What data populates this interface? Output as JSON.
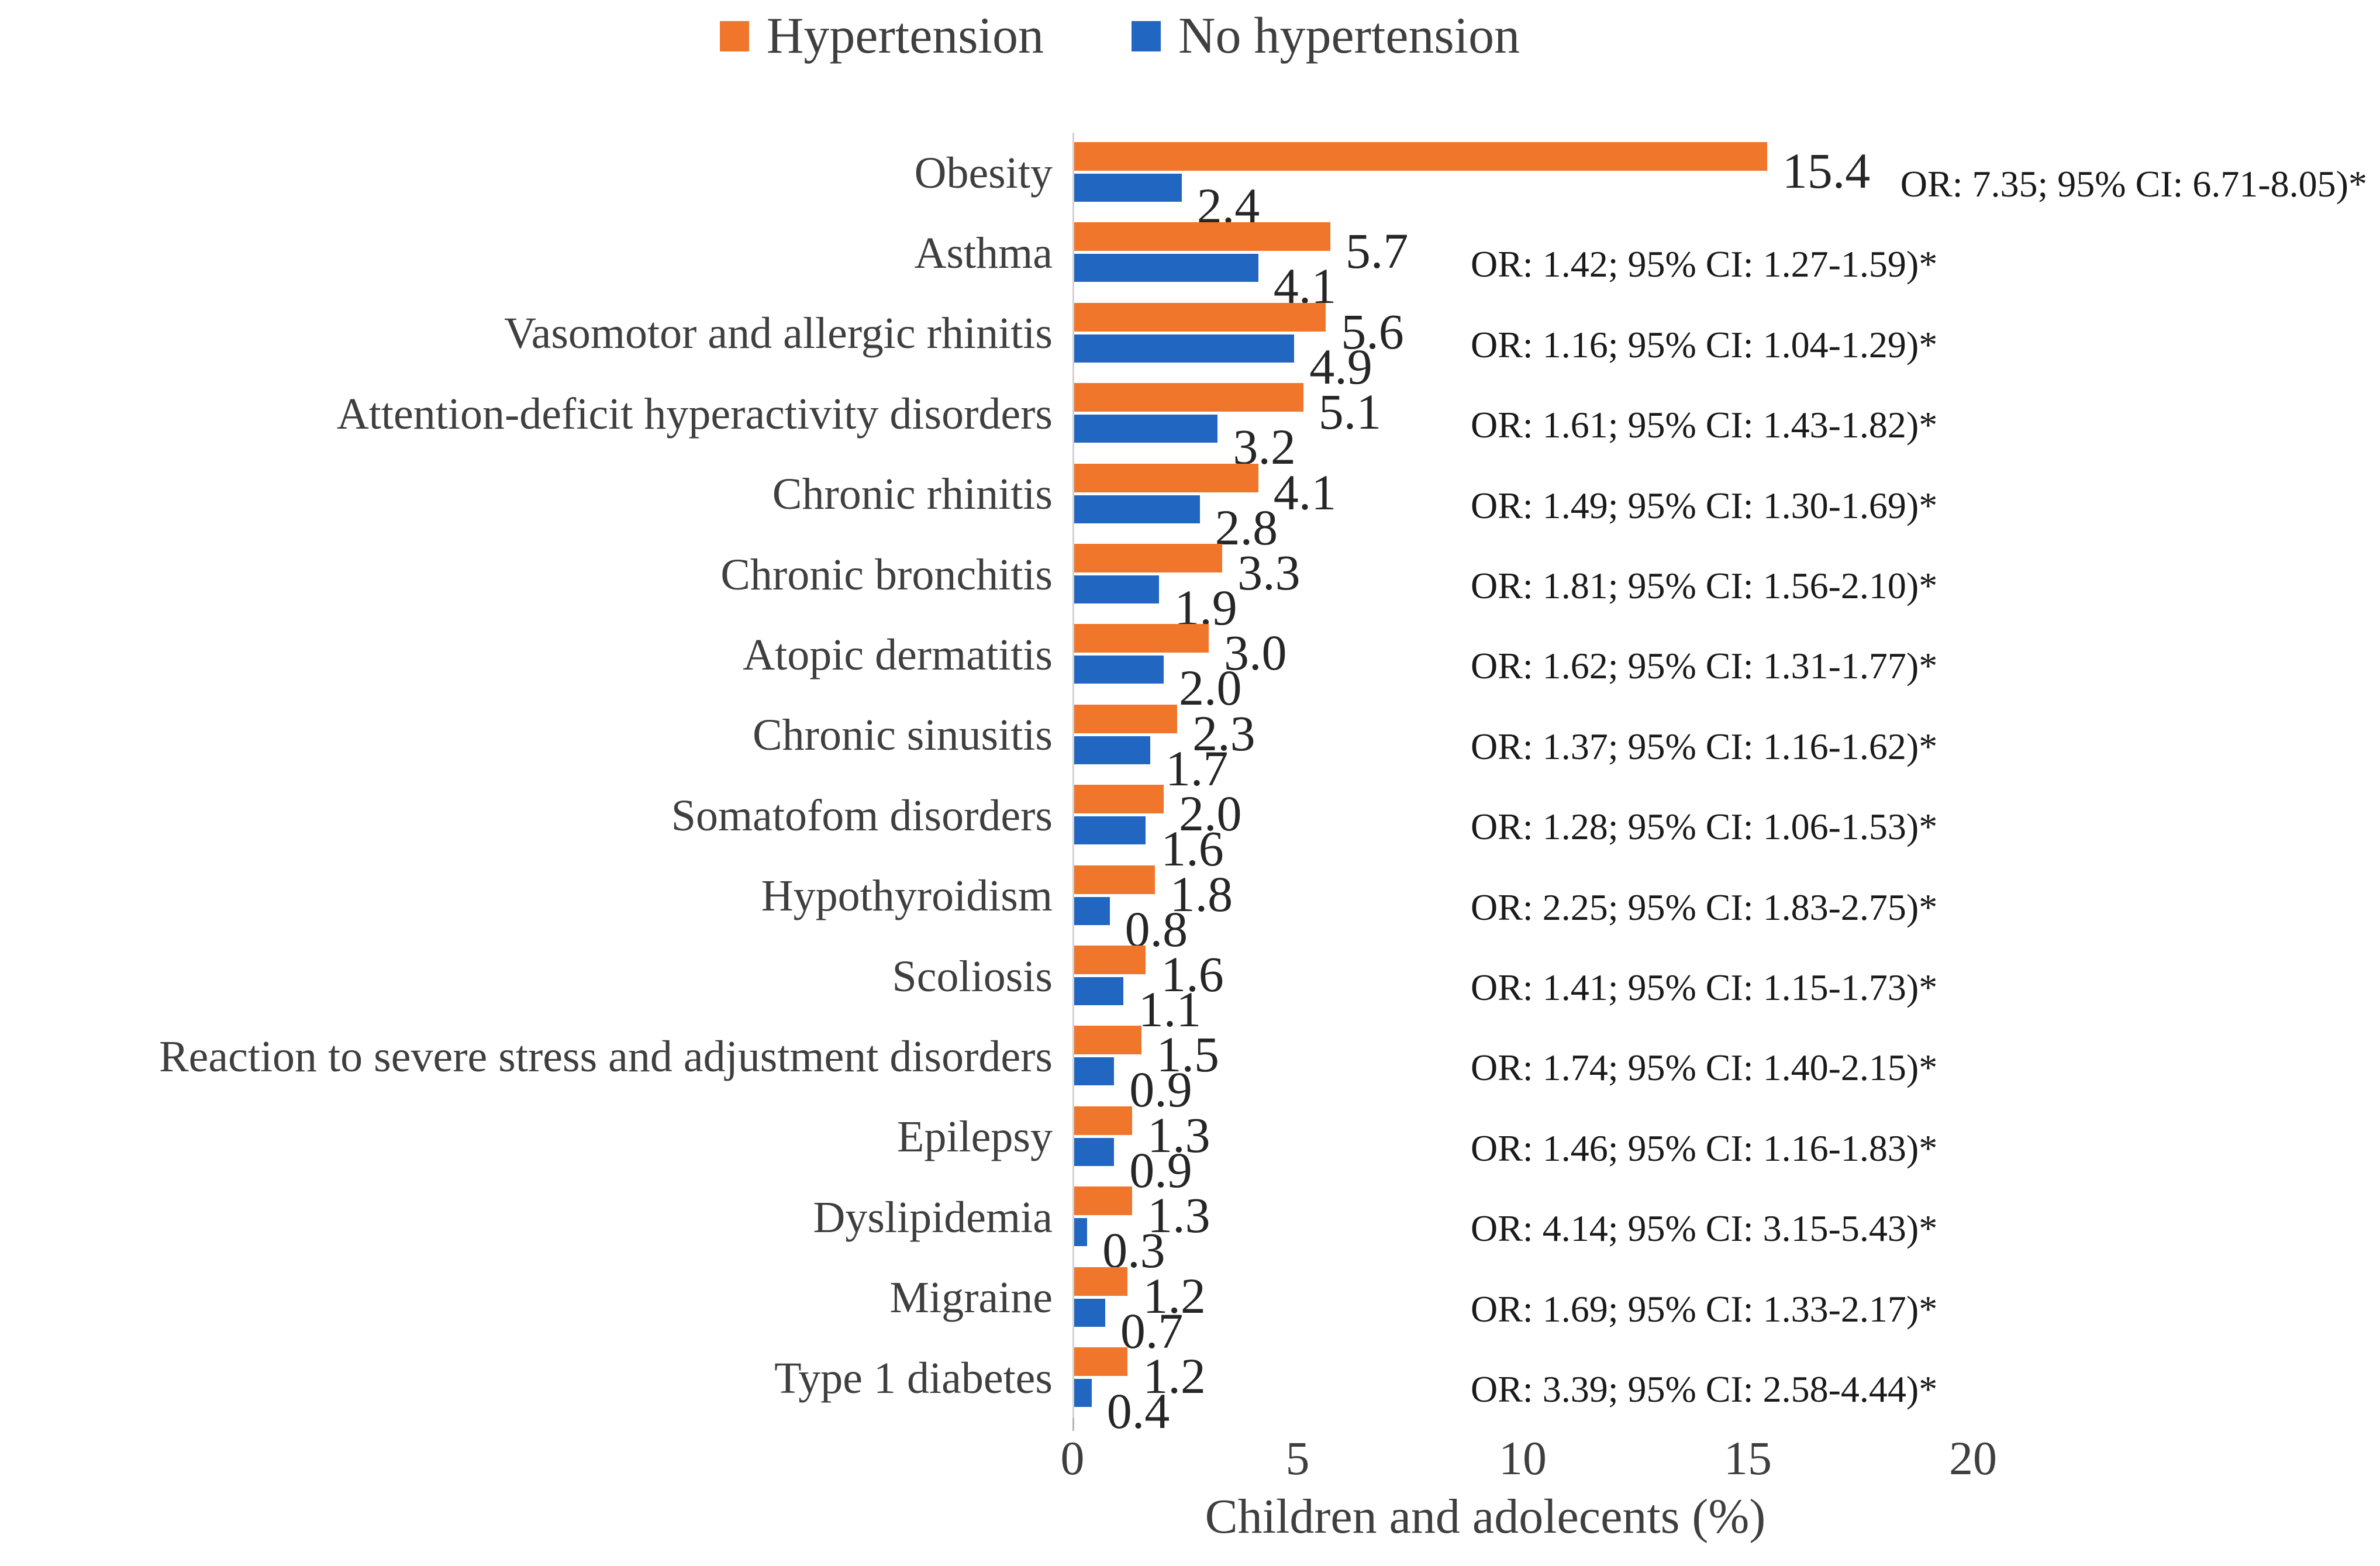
{
  "figure": {
    "background": "#ffffff"
  },
  "legend": {
    "items": [
      {
        "label": "Hypertension",
        "color": "#F0762B"
      },
      {
        "label": "No hypertension",
        "color": "#2166C0"
      }
    ]
  },
  "chart_data": {
    "type": "bar",
    "orientation": "horizontal",
    "title": "",
    "xlabel": "Children and adolecents (%)",
    "ylabel": "",
    "xlim": [
      0,
      20
    ],
    "xticks": [
      "0",
      "5",
      "10",
      "15",
      "20"
    ],
    "grid": false,
    "legend_position": "top-center",
    "categories": [
      "Obesity",
      "Asthma",
      "Vasomotor and allergic rhinitis",
      "Attention-deficit hyperactivity disorders",
      "Chronic rhinitis",
      "Chronic bronchitis",
      "Atopic dermatitis",
      "Chronic sinusitis",
      "Somatofom disorders",
      "Hypothyroidism",
      "Scoliosis",
      "Reaction to severe stress and adjustment disorders",
      "Epilepsy",
      "Dyslipidemia",
      "Migraine",
      "Type 1 diabetes"
    ],
    "series": [
      {
        "name": "Hypertension",
        "color": "#F0762B",
        "values": [
          15.4,
          5.7,
          5.6,
          5.1,
          4.1,
          3.3,
          3.0,
          2.3,
          2.0,
          1.8,
          1.6,
          1.5,
          1.3,
          1.3,
          1.2,
          1.2
        ],
        "value_labels": [
          "15.4",
          "5.7",
          "5.6",
          "5.1",
          "4.1",
          "3.3",
          "3.0",
          "2.3",
          "2.0",
          "1.8",
          "1.6",
          "1.5",
          "1.3",
          "1.3",
          "1.2",
          "1.2"
        ]
      },
      {
        "name": "No hypertension",
        "color": "#2166C0",
        "values": [
          2.4,
          4.1,
          4.9,
          3.2,
          2.8,
          1.9,
          2.0,
          1.7,
          1.6,
          0.8,
          1.1,
          0.9,
          0.9,
          0.3,
          0.7,
          0.4
        ],
        "value_labels": [
          "2.4",
          "4.1",
          "4.9",
          "3.2",
          "2.8",
          "1.9",
          "2.0",
          "1.7",
          "1.6",
          "0.8",
          "1.1",
          "0.9",
          "0.9",
          "0.3",
          "0.7",
          "0.4"
        ]
      }
    ],
    "annotations": [
      "OR: 7.35; 95% CI: 6.71-8.05)*",
      "OR: 1.42; 95% CI: 1.27-1.59)*",
      "OR: 1.16; 95% CI: 1.04-1.29)*",
      "OR: 1.61; 95% CI: 1.43-1.82)*",
      "OR: 1.49; 95% CI: 1.30-1.69)*",
      "OR: 1.81; 95% CI: 1.56-2.10)*",
      "OR: 1.62; 95% CI: 1.31-1.77)*",
      "OR: 1.37; 95% CI: 1.16-1.62)*",
      "OR: 1.28; 95% CI: 1.06-1.53)*",
      "OR: 2.25; 95% CI: 1.83-2.75)*",
      "OR: 1.41; 95% CI: 1.15-1.73)*",
      "OR: 1.74; 95% CI: 1.40-2.15)*",
      "OR: 1.46; 95% CI: 1.16-1.83)*",
      "OR: 4.14; 95% CI: 3.15-5.43)*",
      "OR: 1.69; 95% CI: 1.33-2.17)*",
      "OR: 3.39; 95% CI: 2.58-4.44)*"
    ]
  }
}
